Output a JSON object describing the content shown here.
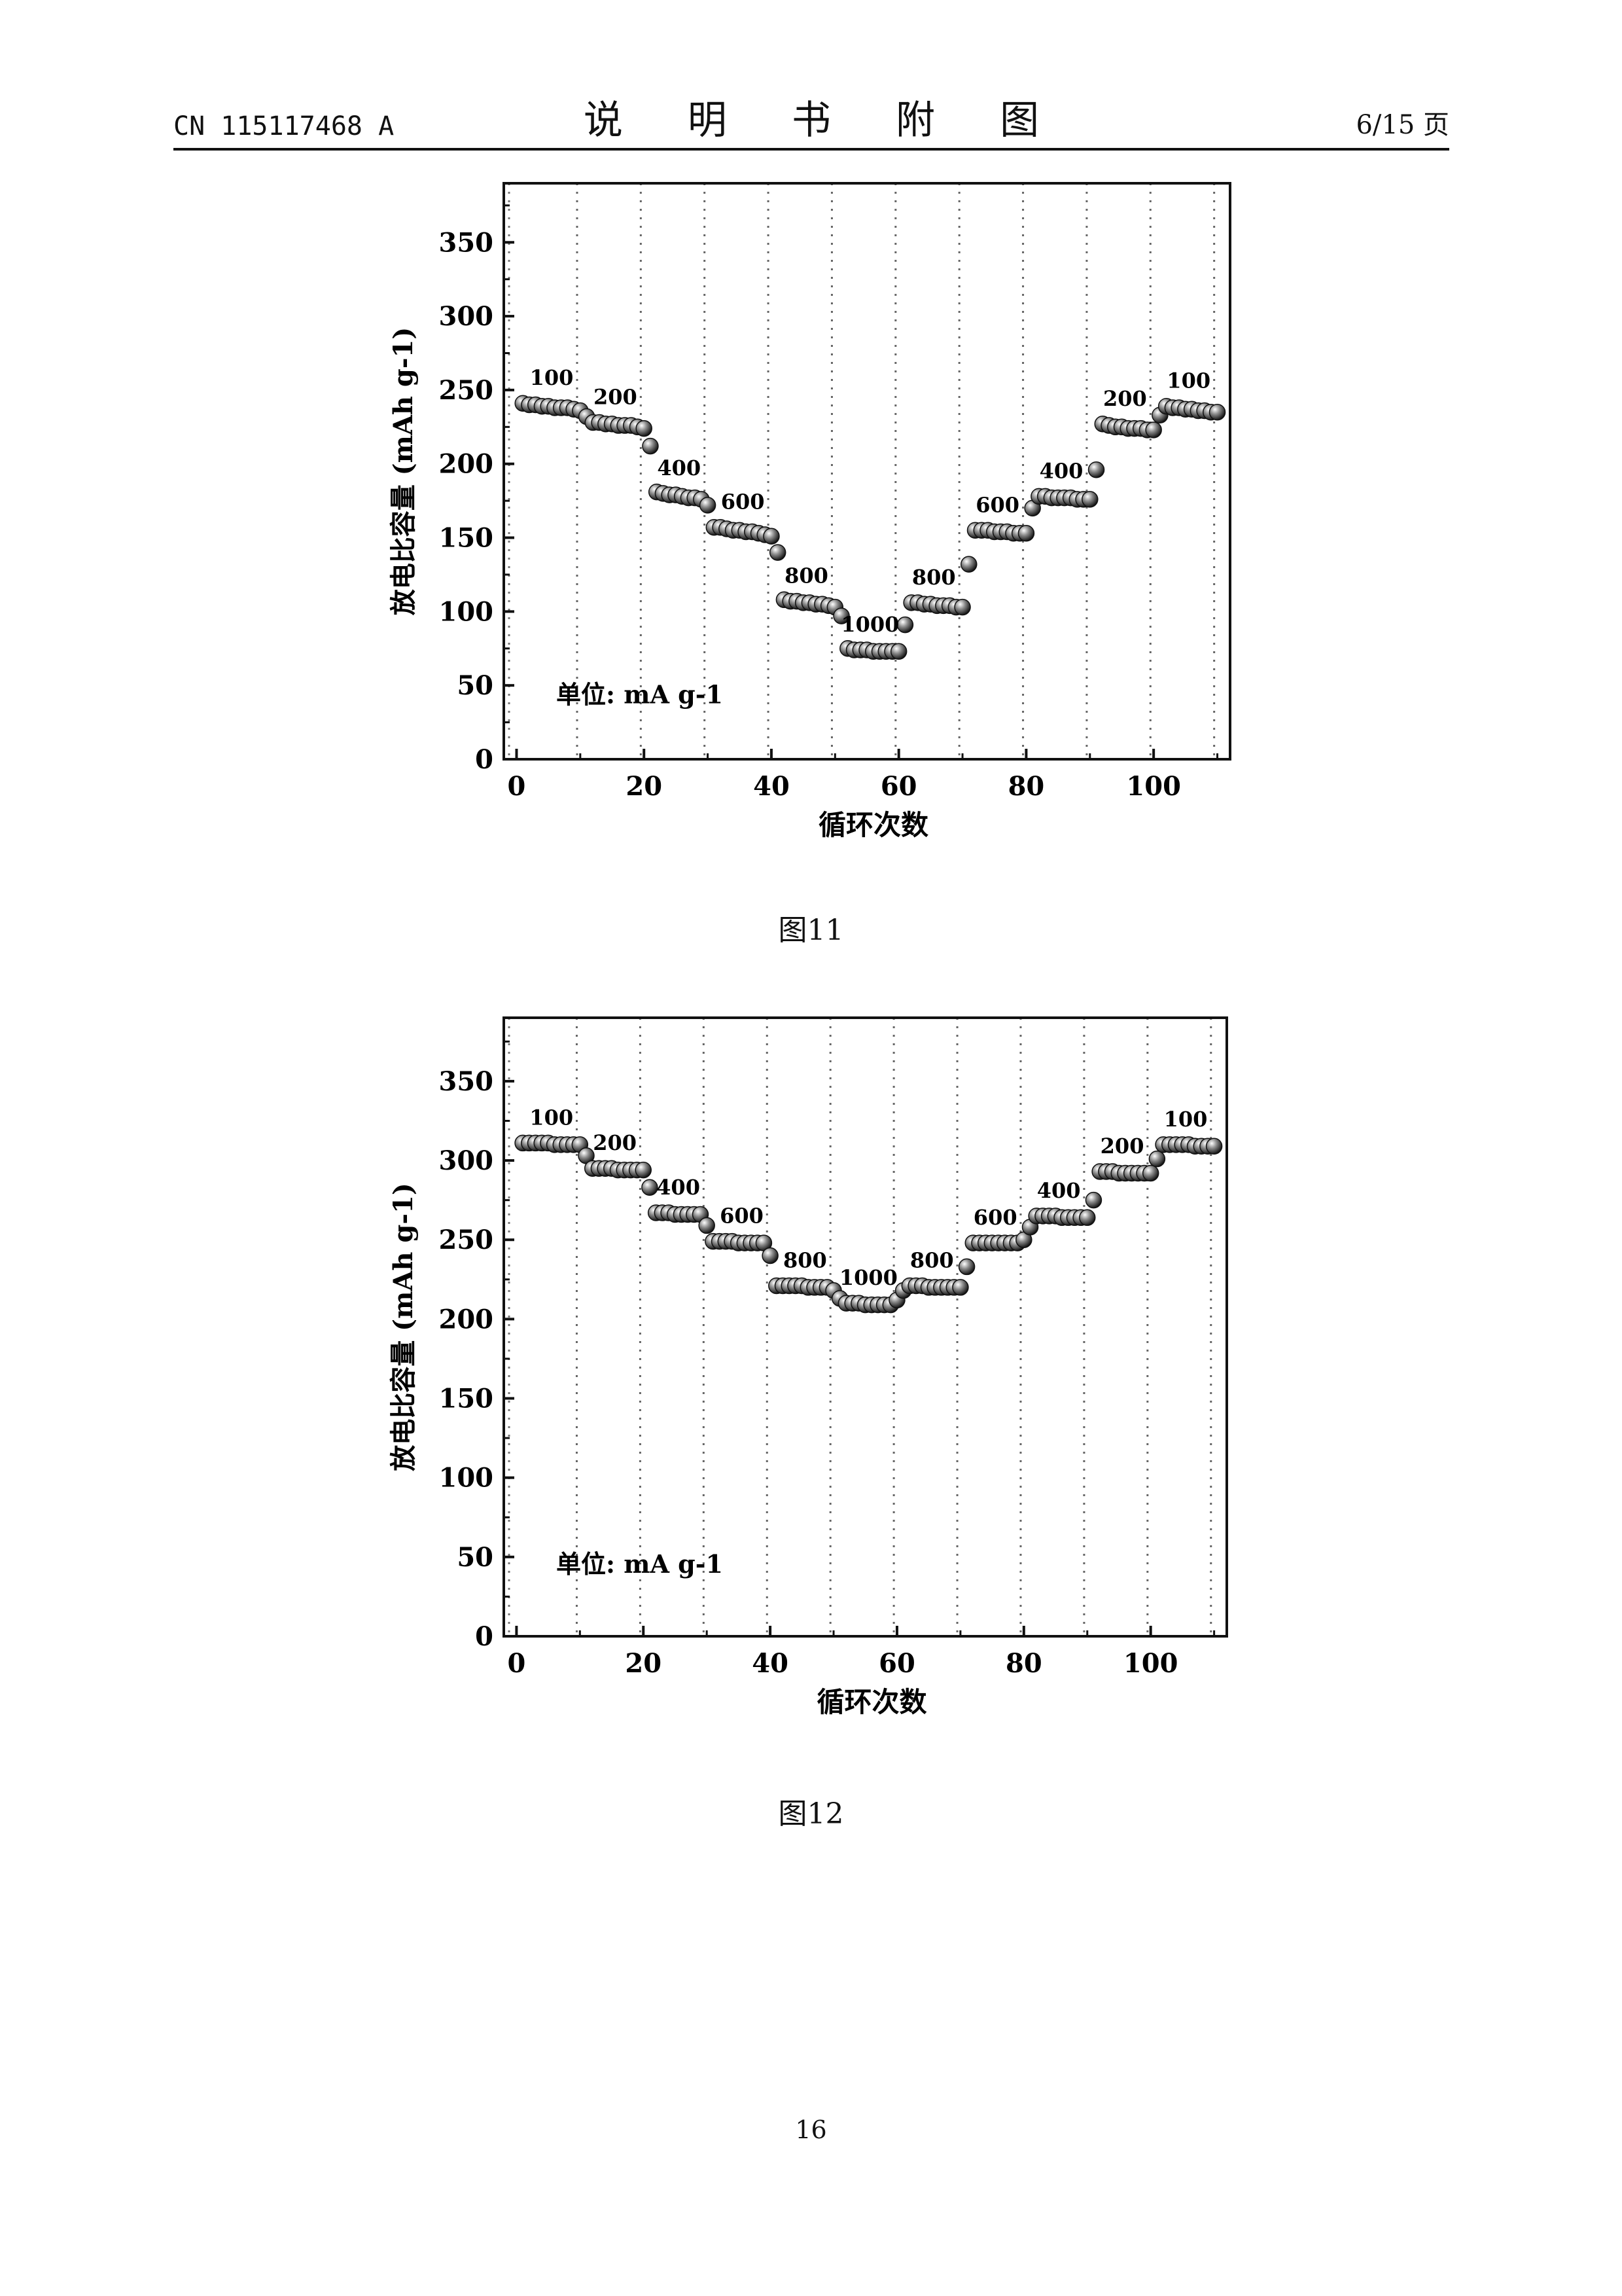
{
  "header": {
    "doc_number": "CN 115117468 A",
    "title": "说 明 书 附 图",
    "page_of": "6/15 页"
  },
  "figures": [
    {
      "caption": "图11"
    },
    {
      "caption": "图12"
    }
  ],
  "page_number": "16",
  "chart_data": [
    {
      "type": "scatter",
      "xlabel": "循环次数",
      "ylabel": "放电比容量 (mAh g-1)",
      "xlim": [
        -2,
        112
      ],
      "ylim": [
        0,
        390
      ],
      "xticks": [
        0,
        20,
        40,
        60,
        80,
        100
      ],
      "yticks": [
        0,
        50,
        100,
        150,
        200,
        250,
        300,
        350
      ],
      "grid": "vertical dotted every 10 cycles",
      "unit_note": "单位: mA g-1",
      "segments": [
        {
          "label": "100",
          "x_start": 1,
          "x_end": 10,
          "y_start": 241,
          "y_end": 237
        },
        {
          "label": "200",
          "x_start": 11,
          "x_end": 20,
          "y_start": 228,
          "y_end": 225
        },
        {
          "label": "400",
          "x_start": 21,
          "x_end": 30,
          "y_start": 180,
          "y_end": 172
        },
        {
          "label": "600",
          "x_start": 31,
          "x_end": 40,
          "y_start": 157,
          "y_end": 151
        },
        {
          "label": "800",
          "x_start": 41,
          "x_end": 50,
          "y_start": 107,
          "y_end": 104
        },
        {
          "label": "1000",
          "x_start": 51,
          "x_end": 60,
          "y_start": 74,
          "y_end": 73
        },
        {
          "label": "800",
          "x_start": 61,
          "x_end": 70,
          "y_start": 106,
          "y_end": 103
        },
        {
          "label": "600",
          "x_start": 71,
          "x_end": 80,
          "y_start": 155,
          "y_end": 153
        },
        {
          "label": "400",
          "x_start": 81,
          "x_end": 90,
          "y_start": 178,
          "y_end": 176
        },
        {
          "label": "200",
          "x_start": 91,
          "x_end": 100,
          "y_start": 227,
          "y_end": 223
        },
        {
          "label": "100",
          "x_start": 101,
          "x_end": 110,
          "y_start": 239,
          "y_end": 235
        }
      ],
      "points": [
        [
          1,
          241
        ],
        [
          2,
          240
        ],
        [
          3,
          240
        ],
        [
          4,
          239
        ],
        [
          5,
          239
        ],
        [
          6,
          238
        ],
        [
          7,
          238
        ],
        [
          8,
          238
        ],
        [
          9,
          237
        ],
        [
          10,
          236
        ],
        [
          11,
          232
        ],
        [
          12,
          228
        ],
        [
          13,
          228
        ],
        [
          14,
          227
        ],
        [
          15,
          227
        ],
        [
          16,
          226
        ],
        [
          17,
          226
        ],
        [
          18,
          226
        ],
        [
          19,
          225
        ],
        [
          20,
          224
        ],
        [
          21,
          212
        ],
        [
          22,
          181
        ],
        [
          23,
          180
        ],
        [
          24,
          179
        ],
        [
          25,
          179
        ],
        [
          26,
          178
        ],
        [
          27,
          177
        ],
        [
          28,
          177
        ],
        [
          29,
          176
        ],
        [
          30,
          172
        ],
        [
          31,
          157
        ],
        [
          32,
          157
        ],
        [
          33,
          156
        ],
        [
          34,
          155
        ],
        [
          35,
          155
        ],
        [
          36,
          154
        ],
        [
          37,
          154
        ],
        [
          38,
          153
        ],
        [
          39,
          152
        ],
        [
          40,
          151
        ],
        [
          41,
          140
        ],
        [
          42,
          108
        ],
        [
          43,
          107
        ],
        [
          44,
          107
        ],
        [
          45,
          106
        ],
        [
          46,
          106
        ],
        [
          47,
          105
        ],
        [
          48,
          105
        ],
        [
          49,
          104
        ],
        [
          50,
          103
        ],
        [
          51,
          97
        ],
        [
          52,
          75
        ],
        [
          53,
          74
        ],
        [
          54,
          74
        ],
        [
          55,
          74
        ],
        [
          56,
          73
        ],
        [
          57,
          73
        ],
        [
          58,
          73
        ],
        [
          59,
          73
        ],
        [
          60,
          73
        ],
        [
          61,
          91
        ],
        [
          62,
          106
        ],
        [
          63,
          106
        ],
        [
          64,
          105
        ],
        [
          65,
          105
        ],
        [
          66,
          104
        ],
        [
          67,
          104
        ],
        [
          68,
          104
        ],
        [
          69,
          103
        ],
        [
          70,
          103
        ],
        [
          71,
          132
        ],
        [
          72,
          155
        ],
        [
          73,
          155
        ],
        [
          74,
          155
        ],
        [
          75,
          154
        ],
        [
          76,
          154
        ],
        [
          77,
          154
        ],
        [
          78,
          153
        ],
        [
          79,
          153
        ],
        [
          80,
          153
        ],
        [
          81,
          170
        ],
        [
          82,
          178
        ],
        [
          83,
          178
        ],
        [
          84,
          177
        ],
        [
          85,
          177
        ],
        [
          86,
          177
        ],
        [
          87,
          177
        ],
        [
          88,
          176
        ],
        [
          89,
          176
        ],
        [
          90,
          176
        ],
        [
          91,
          196
        ],
        [
          92,
          227
        ],
        [
          93,
          226
        ],
        [
          94,
          225
        ],
        [
          95,
          225
        ],
        [
          96,
          224
        ],
        [
          97,
          224
        ],
        [
          98,
          224
        ],
        [
          99,
          223
        ],
        [
          100,
          223
        ],
        [
          101,
          233
        ],
        [
          102,
          239
        ],
        [
          103,
          238
        ],
        [
          104,
          238
        ],
        [
          105,
          237
        ],
        [
          106,
          237
        ],
        [
          107,
          236
        ],
        [
          108,
          236
        ],
        [
          109,
          235
        ],
        [
          110,
          235
        ]
      ]
    },
    {
      "type": "scatter",
      "xlabel": "循环次数",
      "ylabel": "放电比容量 (mAh g-1)",
      "xlim": [
        -2,
        112
      ],
      "ylim": [
        0,
        390
      ],
      "xticks": [
        0,
        20,
        40,
        60,
        80,
        100
      ],
      "yticks": [
        0,
        50,
        100,
        150,
        200,
        250,
        300,
        350
      ],
      "grid": "vertical dotted every 10 cycles",
      "unit_note": "单位: mA g-1",
      "segments": [
        {
          "label": "100",
          "x_start": 1,
          "x_end": 10,
          "y_start": 311,
          "y_end": 310
        },
        {
          "label": "200",
          "x_start": 11,
          "x_end": 20,
          "y_start": 295,
          "y_end": 294
        },
        {
          "label": "400",
          "x_start": 21,
          "x_end": 30,
          "y_start": 267,
          "y_end": 266
        },
        {
          "label": "600",
          "x_start": 31,
          "x_end": 40,
          "y_start": 249,
          "y_end": 248
        },
        {
          "label": "800",
          "x_start": 41,
          "x_end": 50,
          "y_start": 221,
          "y_end": 220
        },
        {
          "label": "1000",
          "x_start": 51,
          "x_end": 60,
          "y_start": 210,
          "y_end": 209
        },
        {
          "label": "800",
          "x_start": 61,
          "x_end": 70,
          "y_start": 221,
          "y_end": 220
        },
        {
          "label": "600",
          "x_start": 71,
          "x_end": 80,
          "y_start": 248,
          "y_end": 248
        },
        {
          "label": "400",
          "x_start": 81,
          "x_end": 90,
          "y_start": 265,
          "y_end": 264
        },
        {
          "label": "200",
          "x_start": 91,
          "x_end": 100,
          "y_start": 293,
          "y_end": 292
        },
        {
          "label": "100",
          "x_start": 101,
          "x_end": 110,
          "y_start": 310,
          "y_end": 309
        }
      ],
      "points": [
        [
          1,
          311
        ],
        [
          2,
          311
        ],
        [
          3,
          311
        ],
        [
          4,
          311
        ],
        [
          5,
          311
        ],
        [
          6,
          310
        ],
        [
          7,
          310
        ],
        [
          8,
          310
        ],
        [
          9,
          310
        ],
        [
          10,
          310
        ],
        [
          11,
          303
        ],
        [
          12,
          295
        ],
        [
          13,
          295
        ],
        [
          14,
          295
        ],
        [
          15,
          295
        ],
        [
          16,
          294
        ],
        [
          17,
          294
        ],
        [
          18,
          294
        ],
        [
          19,
          294
        ],
        [
          20,
          294
        ],
        [
          21,
          283
        ],
        [
          22,
          267
        ],
        [
          23,
          267
        ],
        [
          24,
          267
        ],
        [
          25,
          266
        ],
        [
          26,
          266
        ],
        [
          27,
          266
        ],
        [
          28,
          266
        ],
        [
          29,
          266
        ],
        [
          30,
          259
        ],
        [
          31,
          249
        ],
        [
          32,
          249
        ],
        [
          33,
          249
        ],
        [
          34,
          249
        ],
        [
          35,
          248
        ],
        [
          36,
          248
        ],
        [
          37,
          248
        ],
        [
          38,
          248
        ],
        [
          39,
          248
        ],
        [
          40,
          240
        ],
        [
          41,
          221
        ],
        [
          42,
          221
        ],
        [
          43,
          221
        ],
        [
          44,
          221
        ],
        [
          45,
          221
        ],
        [
          46,
          220
        ],
        [
          47,
          220
        ],
        [
          48,
          220
        ],
        [
          49,
          220
        ],
        [
          50,
          218
        ],
        [
          51,
          213
        ],
        [
          52,
          210
        ],
        [
          53,
          210
        ],
        [
          54,
          210
        ],
        [
          55,
          209
        ],
        [
          56,
          209
        ],
        [
          57,
          209
        ],
        [
          58,
          209
        ],
        [
          59,
          209
        ],
        [
          60,
          212
        ],
        [
          61,
          218
        ],
        [
          62,
          221
        ],
        [
          63,
          221
        ],
        [
          64,
          221
        ],
        [
          65,
          220
        ],
        [
          66,
          220
        ],
        [
          67,
          220
        ],
        [
          68,
          220
        ],
        [
          69,
          220
        ],
        [
          70,
          220
        ],
        [
          71,
          233
        ],
        [
          72,
          248
        ],
        [
          73,
          248
        ],
        [
          74,
          248
        ],
        [
          75,
          248
        ],
        [
          76,
          248
        ],
        [
          77,
          248
        ],
        [
          78,
          248
        ],
        [
          79,
          248
        ],
        [
          80,
          250
        ],
        [
          81,
          258
        ],
        [
          82,
          265
        ],
        [
          83,
          265
        ],
        [
          84,
          265
        ],
        [
          85,
          265
        ],
        [
          86,
          264
        ],
        [
          87,
          264
        ],
        [
          88,
          264
        ],
        [
          89,
          264
        ],
        [
          90,
          264
        ],
        [
          91,
          275
        ],
        [
          92,
          293
        ],
        [
          93,
          293
        ],
        [
          94,
          293
        ],
        [
          95,
          292
        ],
        [
          96,
          292
        ],
        [
          97,
          292
        ],
        [
          98,
          292
        ],
        [
          99,
          292
        ],
        [
          100,
          292
        ],
        [
          101,
          301
        ],
        [
          102,
          310
        ],
        [
          103,
          310
        ],
        [
          104,
          310
        ],
        [
          105,
          310
        ],
        [
          106,
          310
        ],
        [
          107,
          309
        ],
        [
          108,
          309
        ],
        [
          109,
          309
        ],
        [
          110,
          309
        ]
      ]
    }
  ]
}
